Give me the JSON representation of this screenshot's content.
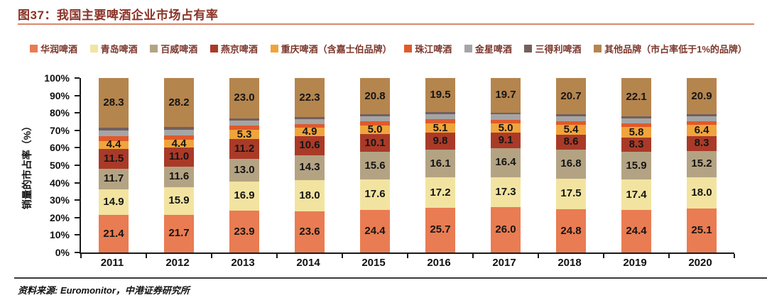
{
  "figure": {
    "title": "图37：我国主要啤酒企业市场占有率",
    "source": "资料来源: Euromonitor，中港证券研究所"
  },
  "colors": {
    "title_text": "#8B3226",
    "title_underline": "#D8876B",
    "legend_text": "#7C372C",
    "axis_line": "#1A1A1A",
    "data_label_text": "#151515",
    "footer_rule": "#3A3A3A"
  },
  "chart_data": {
    "type": "bar",
    "stacked": true,
    "title": "图37：我国主要啤酒企业市场占有率",
    "xlabel": "",
    "ylabel": "销量的市占率（%）",
    "ylim": [
      0,
      100
    ],
    "grid": false,
    "legend_position": "top",
    "yticks": [
      "100%",
      "90%",
      "80%",
      "70%",
      "60%",
      "50%",
      "40%",
      "30%",
      "20%",
      "10%",
      "0%"
    ],
    "categories": [
      "2011",
      "2012",
      "2013",
      "2014",
      "2015",
      "2016",
      "2017",
      "2018",
      "2019",
      "2020"
    ],
    "series": [
      {
        "name": "华润啤酒",
        "color": "#E97C52",
        "labeled": true,
        "values": [
          21.4,
          21.7,
          23.9,
          23.6,
          24.4,
          25.7,
          26.0,
          24.8,
          24.4,
          25.1
        ]
      },
      {
        "name": "青岛啤酒",
        "color": "#F2E4A0",
        "labeled": true,
        "values": [
          14.9,
          15.9,
          16.9,
          18.0,
          17.6,
          17.2,
          17.3,
          17.5,
          17.4,
          18.0
        ]
      },
      {
        "name": "百威啤酒",
        "color": "#B4A383",
        "labeled": true,
        "values": [
          11.7,
          11.6,
          13.0,
          14.3,
          15.6,
          16.1,
          16.4,
          16.8,
          15.9,
          15.2
        ]
      },
      {
        "name": "燕京啤酒",
        "color": "#AA3A28",
        "labeled": true,
        "values": [
          11.5,
          11.0,
          11.2,
          10.6,
          10.1,
          9.8,
          9.1,
          8.6,
          8.3,
          8.3
        ]
      },
      {
        "name": "重庆啤酒（含嘉士伯品牌）",
        "color": "#F0A43C",
        "labeled": true,
        "values": [
          4.4,
          4.4,
          5.3,
          4.9,
          5.0,
          5.1,
          5.0,
          5.4,
          5.8,
          6.4
        ]
      },
      {
        "name": "珠江啤酒",
        "color": "#E05A2B",
        "labeled": false,
        "values": [
          2.8,
          2.6,
          2.4,
          2.3,
          2.4,
          2.4,
          2.4,
          2.3,
          2.2,
          2.2
        ]
      },
      {
        "name": "金星啤酒",
        "color": "#A5A5A5",
        "labeled": false,
        "values": [
          3.4,
          3.2,
          3.0,
          2.8,
          2.9,
          3.0,
          2.9,
          2.7,
          2.7,
          2.7
        ]
      },
      {
        "name": "三得利啤酒",
        "color": "#73605C",
        "labeled": false,
        "values": [
          1.6,
          1.4,
          1.3,
          1.2,
          1.2,
          1.2,
          1.2,
          1.2,
          1.2,
          1.2
        ]
      },
      {
        "name": "其他品牌（市占率低于1%的品牌）",
        "color": "#B5854E",
        "labeled": true,
        "values": [
          28.3,
          28.2,
          23.0,
          22.3,
          20.8,
          19.5,
          19.7,
          20.7,
          22.1,
          20.9
        ]
      }
    ]
  }
}
